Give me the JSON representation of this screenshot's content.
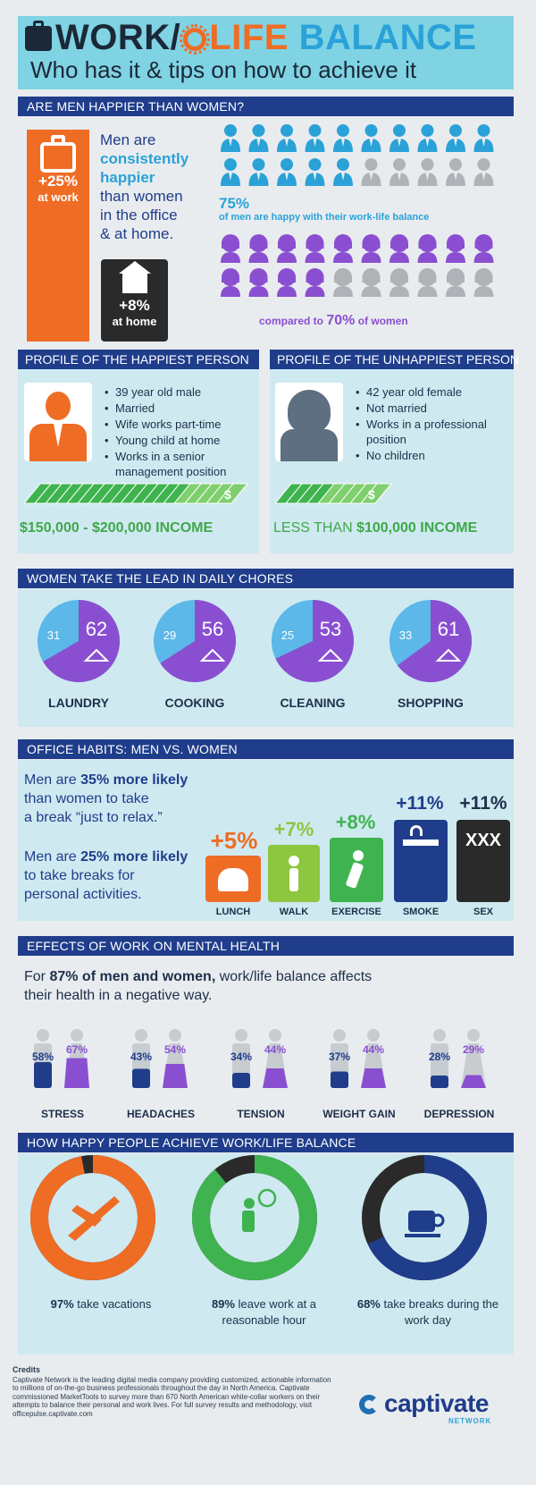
{
  "header": {
    "title_work": "WORK/",
    "title_life": "LIFE",
    "title_balance": "BALANCE",
    "subtitle": "Who has it & tips on how to achieve it"
  },
  "section1": {
    "bar": "ARE MEN HAPPIER THAN WOMEN?",
    "work_pct": "+25%",
    "work_label": "at work",
    "home_pct": "+8%",
    "home_label": "at home",
    "text_1": "Men are",
    "text_2": "consistently",
    "text_3": "happier",
    "text_4": "than women",
    "text_5": "in the office",
    "text_6": "& at home.",
    "men_pct": "75%",
    "men_caption": "of men are happy with their work-life balance",
    "women_caption_1": "compared to",
    "women_pct": "70%",
    "women_caption_2": "of women",
    "men_happy_fraction": 0.75,
    "women_happy_fraction": 0.7
  },
  "profiles": {
    "happy_title": "PROFILE OF THE HAPPIEST PERSON",
    "happy_items": [
      "39 year old male",
      "Married",
      "Wife works part-time",
      "Young child at home",
      "Works in a senior management position"
    ],
    "happy_income": "$150,000 - $200,000 INCOME",
    "unhappy_title": "PROFILE OF THE UNHAPPIEST PERSON",
    "unhappy_items": [
      "42 year old female",
      "Not married",
      "Works in a professional position",
      "No children"
    ],
    "unhappy_income_1": "LESS THAN",
    "unhappy_income_2": "$100,000 INCOME"
  },
  "chores": {
    "bar": "WOMEN TAKE THE LEAD IN DAILY CHORES",
    "items": [
      {
        "label": "LAUNDRY",
        "men": "31",
        "women": "62"
      },
      {
        "label": "COOKING",
        "men": "29",
        "women": "56"
      },
      {
        "label": "CLEANING",
        "men": "25",
        "women": "53"
      },
      {
        "label": "SHOPPING",
        "men": "33",
        "women": "61"
      }
    ]
  },
  "habits": {
    "bar": "OFFICE HABITS: MEN VS. WOMEN",
    "text1_a": "Men are",
    "text1_b": "35% more likely",
    "text1_c": "than women to take",
    "text1_d": "a break “just to relax.”",
    "text2_a": "Men are",
    "text2_b": "25% more likely",
    "text2_c": "to take breaks for",
    "text2_d": "personal activities.",
    "items": [
      {
        "label": "LUNCH",
        "pct": "+5%"
      },
      {
        "label": "WALK",
        "pct": "+7%"
      },
      {
        "label": "EXERCISE",
        "pct": "+8%"
      },
      {
        "label": "SMOKE",
        "pct": "+11%"
      },
      {
        "label": "SEX",
        "pct": "+11%",
        "box_text": "XXX"
      }
    ]
  },
  "health": {
    "bar": "EFFECTS OF WORK ON MENTAL HEALTH",
    "lead_1": "For",
    "lead_b": "87% of men and women,",
    "lead_2": "work/life balance affects their health in a negative way.",
    "items": [
      {
        "label": "STRESS",
        "men": "58%",
        "women": "67%"
      },
      {
        "label": "HEADACHES",
        "men": "43%",
        "women": "54%"
      },
      {
        "label": "TENSION",
        "men": "34%",
        "women": "44%"
      },
      {
        "label": "WEIGHT GAIN",
        "men": "37%",
        "women": "44%"
      },
      {
        "label": "DEPRESSION",
        "men": "28%",
        "women": "29%"
      }
    ]
  },
  "achieve": {
    "bar": "HOW HAPPY PEOPLE ACHIEVE WORK/LIFE BALANCE",
    "items": [
      {
        "pct": "97%",
        "text": "take vacations",
        "value": 0.97,
        "color": "#ef6c25"
      },
      {
        "pct": "89%",
        "text": "leave work at a reasonable hour",
        "value": 0.89,
        "color": "#3fb34f"
      },
      {
        "pct": "68%",
        "text": "take breaks during the work day",
        "value": 0.68,
        "color": "#1f3d8b"
      }
    ]
  },
  "credits": {
    "title": "Credits",
    "body": "Captivate Network is the leading digital media company providing customized, actionable information to millions of on-the-go business professionals throughout the day in North America. Captivate commissioned MarketTools to survey more than 670 North American white-collar workers on their attempts to balance their personal and work lives. For full survey results and methodology, visit officepulse.captivate.com"
  },
  "logo": {
    "name": "captivate",
    "sub": "NETWORK"
  }
}
